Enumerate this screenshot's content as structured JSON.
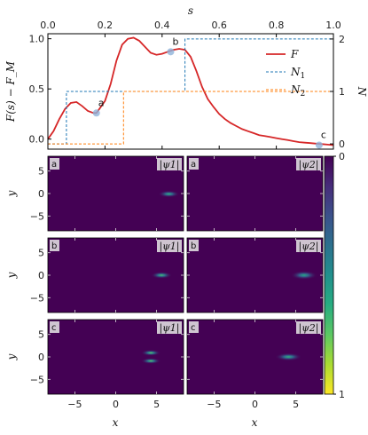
{
  "chart_data": [
    {
      "type": "line",
      "title": "",
      "xlabel": "s",
      "ylabel_left": "F(s) − F_M",
      "ylabel_right": "N",
      "xlim": [
        0.0,
        1.0
      ],
      "ylim_left": [
        -0.1,
        1.05
      ],
      "ylim_right": [
        -0.1,
        2.1
      ],
      "x_ticks": [
        "0.0",
        "0.2",
        "0.4",
        "0.6",
        "0.8",
        "1.0"
      ],
      "y_ticks_left": [
        "0.0",
        "0.5",
        "1.0"
      ],
      "y_ticks_right": [
        "0",
        "1",
        "2"
      ],
      "legend": {
        "placement": "right",
        "entries": [
          {
            "label": "F",
            "color": "#d62728",
            "style": "solid"
          },
          {
            "label": "N",
            "sub": "1",
            "color": "#1f77b4",
            "style": "dashed"
          },
          {
            "label": "N",
            "sub": "2",
            "color": "#ff7f0e",
            "style": "dashed"
          }
        ]
      },
      "series": [
        {
          "name": "F",
          "axis": "left",
          "color": "#d62728",
          "x": [
            0.0,
            0.02,
            0.04,
            0.06,
            0.08,
            0.1,
            0.12,
            0.14,
            0.16,
            0.17,
            0.18,
            0.2,
            0.22,
            0.24,
            0.26,
            0.28,
            0.3,
            0.32,
            0.34,
            0.36,
            0.38,
            0.4,
            0.42,
            0.44,
            0.46,
            0.48,
            0.5,
            0.52,
            0.54,
            0.56,
            0.58,
            0.6,
            0.62,
            0.64,
            0.66,
            0.68,
            0.7,
            0.72,
            0.74,
            0.76,
            0.78,
            0.8,
            0.82,
            0.84,
            0.86,
            0.88,
            0.9,
            0.92,
            0.94,
            0.96,
            0.98,
            1.0
          ],
          "y": [
            0.0,
            0.08,
            0.2,
            0.3,
            0.36,
            0.37,
            0.33,
            0.28,
            0.26,
            0.26,
            0.3,
            0.38,
            0.55,
            0.78,
            0.94,
            1.0,
            1.01,
            0.98,
            0.92,
            0.86,
            0.84,
            0.85,
            0.87,
            0.89,
            0.9,
            0.89,
            0.82,
            0.68,
            0.52,
            0.4,
            0.32,
            0.25,
            0.2,
            0.16,
            0.13,
            0.1,
            0.08,
            0.06,
            0.04,
            0.03,
            0.02,
            0.01,
            0.0,
            -0.01,
            -0.02,
            -0.03,
            -0.035,
            -0.04,
            -0.045,
            -0.05,
            -0.055,
            -0.06
          ]
        },
        {
          "name": "N_1",
          "axis": "right",
          "color": "#1f77b4",
          "x": [
            0.0,
            0.065,
            0.065,
            0.48,
            0.48,
            1.0
          ],
          "y": [
            0,
            0,
            1,
            1,
            2,
            2
          ]
        },
        {
          "name": "N_2",
          "axis": "right",
          "color": "#ff7f0e",
          "x": [
            0.0,
            0.265,
            0.265,
            1.0
          ],
          "y": [
            0,
            0,
            1,
            1
          ]
        }
      ],
      "points": [
        {
          "label": "a",
          "x": 0.17,
          "y": 0.26
        },
        {
          "label": "b",
          "x": 0.43,
          "y": 0.87
        },
        {
          "label": "c",
          "x": 0.95,
          "y": -0.06
        }
      ]
    },
    {
      "type": "heatmap",
      "xlabel": "x",
      "ylabel": "y",
      "xlim": [
        -8.3,
        8.3
      ],
      "ylim": [
        -8.3,
        8.3
      ],
      "x_ticks": [
        "−5",
        "0",
        "5"
      ],
      "y_ticks": [
        "5",
        "0",
        "−5"
      ],
      "colormap": "viridis",
      "colorbar_ticks": [
        "0",
        "1"
      ],
      "panels": [
        {
          "tag": "a",
          "field": "|ψ1|",
          "blobs": [
            {
              "x": 6.5,
              "y": -0.1,
              "sx": 0.6,
              "sy": 0.35,
              "amp": 0.65
            }
          ]
        },
        {
          "tag": "a",
          "field": "|ψ2|",
          "blobs": []
        },
        {
          "tag": "b",
          "field": "|ψ1|",
          "blobs": [
            {
              "x": 5.6,
              "y": 0.0,
              "sx": 0.6,
              "sy": 0.35,
              "amp": 0.7
            }
          ]
        },
        {
          "tag": "b",
          "field": "|ψ2|",
          "blobs": [
            {
              "x": 6.0,
              "y": 0.0,
              "sx": 0.75,
              "sy": 0.45,
              "amp": 0.6
            }
          ]
        },
        {
          "tag": "c",
          "field": "|ψ1|",
          "blobs": [
            {
              "x": 4.3,
              "y": 0.9,
              "sx": 0.55,
              "sy": 0.3,
              "amp": 0.75
            },
            {
              "x": 4.3,
              "y": -0.9,
              "sx": 0.55,
              "sy": 0.3,
              "amp": 0.75
            }
          ]
        },
        {
          "tag": "c",
          "field": "|ψ2|",
          "blobs": [
            {
              "x": 4.1,
              "y": 0.0,
              "sx": 0.75,
              "sy": 0.4,
              "amp": 0.65
            }
          ]
        }
      ]
    }
  ]
}
